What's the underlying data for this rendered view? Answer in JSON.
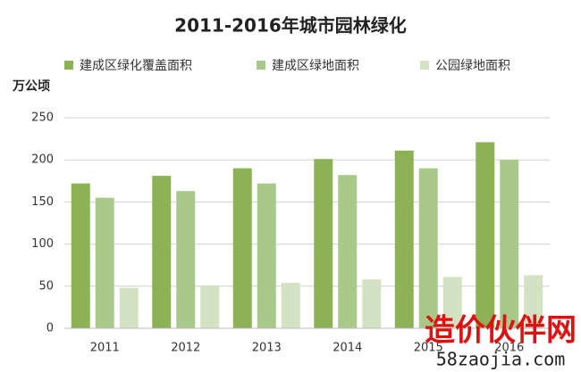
{
  "chart_data": {
    "type": "bar",
    "title": "2011-2016年城市园林绿化",
    "y_label": "万公顷",
    "categories": [
      "2011",
      "2012",
      "2013",
      "2014",
      "2015",
      "2016"
    ],
    "series": [
      {
        "name": "建成区绿化覆盖面积",
        "color": "#8db255",
        "values": [
          172,
          181,
          190,
          201,
          211,
          221
        ]
      },
      {
        "name": "建成区绿地面积",
        "color": "#a9c98b",
        "values": [
          155,
          163,
          172,
          182,
          190,
          200
        ]
      },
      {
        "name": "公园绿地面积",
        "color": "#d3e2c3",
        "values": [
          48,
          51,
          54,
          58,
          61,
          63
        ]
      }
    ],
    "ylim": [
      0,
      250
    ],
    "yticks": [
      0,
      50,
      100,
      150,
      200,
      250
    ],
    "grid": true,
    "legend": "top"
  },
  "watermark": {
    "name": "造价伙伴网",
    "url": "58zaojia.com"
  }
}
